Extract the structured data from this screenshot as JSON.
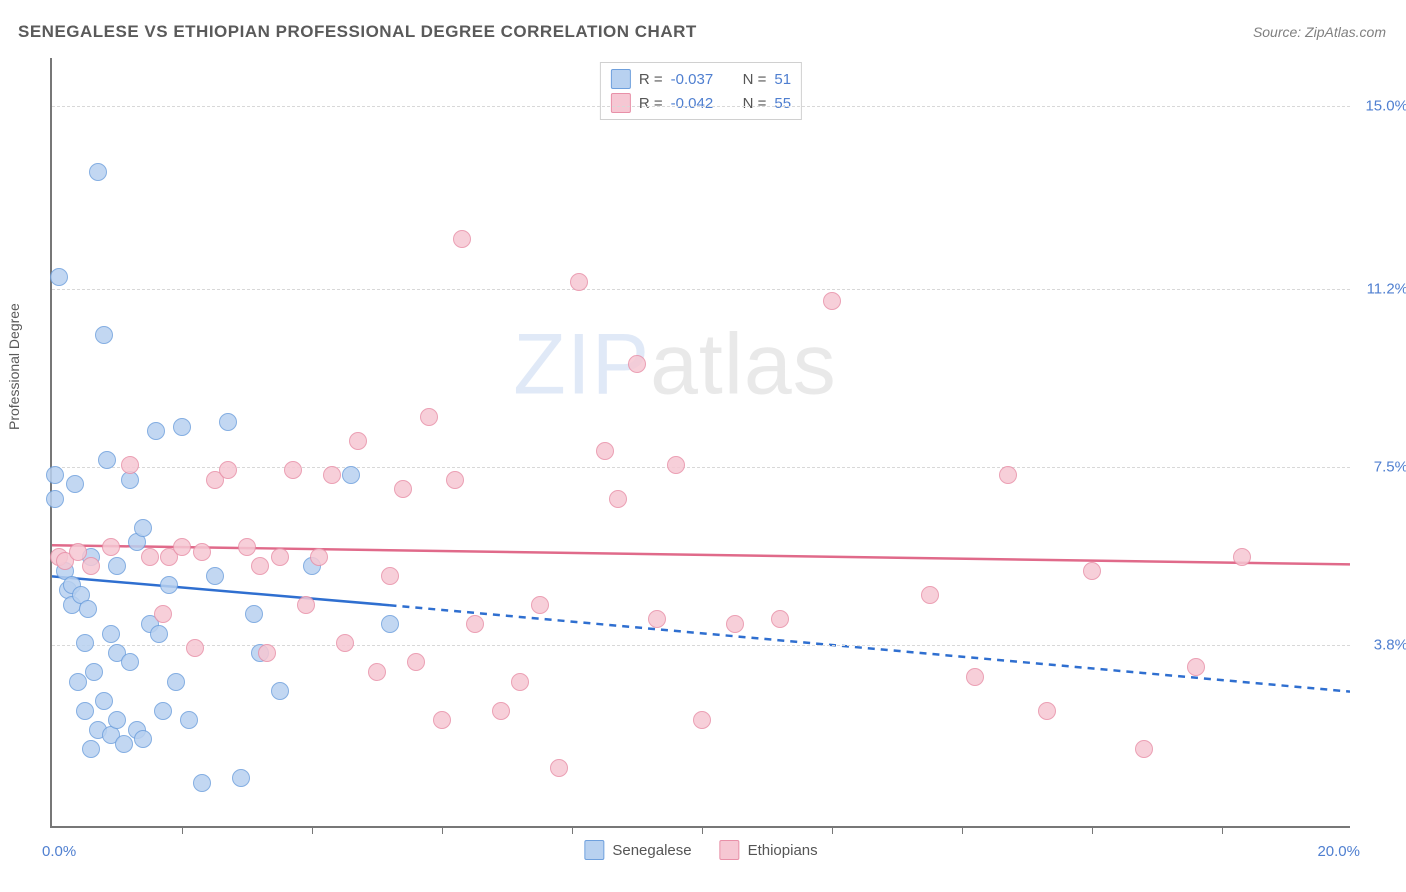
{
  "title": "SENEGALESE VS ETHIOPIAN PROFESSIONAL DEGREE CORRELATION CHART",
  "source": "Source: ZipAtlas.com",
  "ylabel": "Professional Degree",
  "watermark": {
    "zip": "ZIP",
    "atlas": "atlas"
  },
  "colors": {
    "series1_fill": "#b8d1f0",
    "series1_stroke": "#6fa0dd",
    "series1_line": "#2f6fd0",
    "series2_fill": "#f6c7d3",
    "series2_stroke": "#e890a8",
    "series2_line": "#e06a8a",
    "tick_label": "#4f7fd0",
    "grid": "#d8d8d8",
    "axis": "#777777",
    "text": "#5a5a5a"
  },
  "chart": {
    "type": "scatter",
    "xlim": [
      0,
      20
    ],
    "ylim": [
      0,
      16
    ],
    "x_ticks": [
      2,
      4,
      6,
      8,
      10,
      12,
      14,
      16,
      18
    ],
    "y_gridlines": [
      3.8,
      7.5,
      11.2,
      15.0
    ],
    "x_axis_left_label": "0.0%",
    "x_axis_right_label": "20.0%",
    "marker_radius": 9,
    "line_width": 2.5,
    "background": "#ffffff"
  },
  "legend_top": {
    "rows": [
      {
        "swatch_fill": "#b8d1f0",
        "swatch_stroke": "#6fa0dd",
        "r_label": "R =",
        "r_value": "-0.037",
        "n_label": "N =",
        "n_value": "51"
      },
      {
        "swatch_fill": "#f6c7d3",
        "swatch_stroke": "#e890a8",
        "r_label": "R =",
        "r_value": "-0.042",
        "n_label": "N =",
        "n_value": "55"
      }
    ]
  },
  "legend_bottom": {
    "items": [
      {
        "swatch_fill": "#b8d1f0",
        "swatch_stroke": "#6fa0dd",
        "label": "Senegalese"
      },
      {
        "swatch_fill": "#f6c7d3",
        "swatch_stroke": "#e890a8",
        "label": "Ethiopians"
      }
    ]
  },
  "series": [
    {
      "name": "Senegalese",
      "fill": "#b8d1f0",
      "stroke": "#6fa0dd",
      "line_color": "#2f6fd0",
      "trend": {
        "x1": 0,
        "y1": 5.2,
        "x2": 5.2,
        "y2": 4.6,
        "ext_x2": 20,
        "ext_y2": 2.8
      },
      "points": [
        [
          0.05,
          7.3
        ],
        [
          0.05,
          6.8
        ],
        [
          0.1,
          11.4
        ],
        [
          0.2,
          5.3
        ],
        [
          0.25,
          4.9
        ],
        [
          0.3,
          5.0
        ],
        [
          0.3,
          4.6
        ],
        [
          0.35,
          7.1
        ],
        [
          0.4,
          3.0
        ],
        [
          0.45,
          4.8
        ],
        [
          0.5,
          3.8
        ],
        [
          0.5,
          2.4
        ],
        [
          0.55,
          4.5
        ],
        [
          0.6,
          5.6
        ],
        [
          0.6,
          1.6
        ],
        [
          0.65,
          3.2
        ],
        [
          0.7,
          2.0
        ],
        [
          0.7,
          13.6
        ],
        [
          0.8,
          10.2
        ],
        [
          0.8,
          2.6
        ],
        [
          0.85,
          7.6
        ],
        [
          0.9,
          1.9
        ],
        [
          0.9,
          4.0
        ],
        [
          1.0,
          3.6
        ],
        [
          1.0,
          2.2
        ],
        [
          1.0,
          5.4
        ],
        [
          1.1,
          1.7
        ],
        [
          1.2,
          7.2
        ],
        [
          1.2,
          3.4
        ],
        [
          1.3,
          5.9
        ],
        [
          1.3,
          2.0
        ],
        [
          1.4,
          6.2
        ],
        [
          1.4,
          1.8
        ],
        [
          1.5,
          4.2
        ],
        [
          1.6,
          8.2
        ],
        [
          1.65,
          4.0
        ],
        [
          1.7,
          2.4
        ],
        [
          1.8,
          5.0
        ],
        [
          1.9,
          3.0
        ],
        [
          2.0,
          8.3
        ],
        [
          2.1,
          2.2
        ],
        [
          2.3,
          0.9
        ],
        [
          2.5,
          5.2
        ],
        [
          2.7,
          8.4
        ],
        [
          2.9,
          1.0
        ],
        [
          3.1,
          4.4
        ],
        [
          3.2,
          3.6
        ],
        [
          3.5,
          2.8
        ],
        [
          4.0,
          5.4
        ],
        [
          4.6,
          7.3
        ],
        [
          5.2,
          4.2
        ]
      ]
    },
    {
      "name": "Ethiopians",
      "fill": "#f6c7d3",
      "stroke": "#e890a8",
      "line_color": "#e06a8a",
      "trend": {
        "x1": 0,
        "y1": 5.85,
        "x2": 20,
        "y2": 5.45
      },
      "points": [
        [
          0.1,
          5.6
        ],
        [
          0.2,
          5.5
        ],
        [
          0.4,
          5.7
        ],
        [
          0.6,
          5.4
        ],
        [
          0.9,
          5.8
        ],
        [
          1.2,
          7.5
        ],
        [
          1.5,
          5.6
        ],
        [
          1.7,
          4.4
        ],
        [
          1.8,
          5.6
        ],
        [
          2.0,
          5.8
        ],
        [
          2.2,
          3.7
        ],
        [
          2.3,
          5.7
        ],
        [
          2.5,
          7.2
        ],
        [
          2.7,
          7.4
        ],
        [
          3.0,
          5.8
        ],
        [
          3.2,
          5.4
        ],
        [
          3.3,
          3.6
        ],
        [
          3.5,
          5.6
        ],
        [
          3.7,
          7.4
        ],
        [
          3.9,
          4.6
        ],
        [
          4.1,
          5.6
        ],
        [
          4.3,
          7.3
        ],
        [
          4.5,
          3.8
        ],
        [
          4.7,
          8.0
        ],
        [
          5.0,
          3.2
        ],
        [
          5.2,
          5.2
        ],
        [
          5.4,
          7.0
        ],
        [
          5.6,
          3.4
        ],
        [
          5.8,
          8.5
        ],
        [
          6.0,
          2.2
        ],
        [
          6.2,
          7.2
        ],
        [
          6.3,
          12.2
        ],
        [
          6.5,
          4.2
        ],
        [
          6.9,
          2.4
        ],
        [
          7.2,
          3.0
        ],
        [
          7.5,
          4.6
        ],
        [
          7.8,
          1.2
        ],
        [
          8.1,
          11.3
        ],
        [
          8.5,
          7.8
        ],
        [
          8.7,
          6.8
        ],
        [
          9.0,
          9.6
        ],
        [
          9.3,
          4.3
        ],
        [
          9.6,
          7.5
        ],
        [
          10.0,
          2.2
        ],
        [
          10.5,
          4.2
        ],
        [
          11.2,
          4.3
        ],
        [
          12.0,
          10.9
        ],
        [
          13.5,
          4.8
        ],
        [
          14.2,
          3.1
        ],
        [
          14.7,
          7.3
        ],
        [
          15.3,
          2.4
        ],
        [
          16.0,
          5.3
        ],
        [
          16.8,
          1.6
        ],
        [
          17.6,
          3.3
        ],
        [
          18.3,
          5.6
        ]
      ]
    }
  ]
}
